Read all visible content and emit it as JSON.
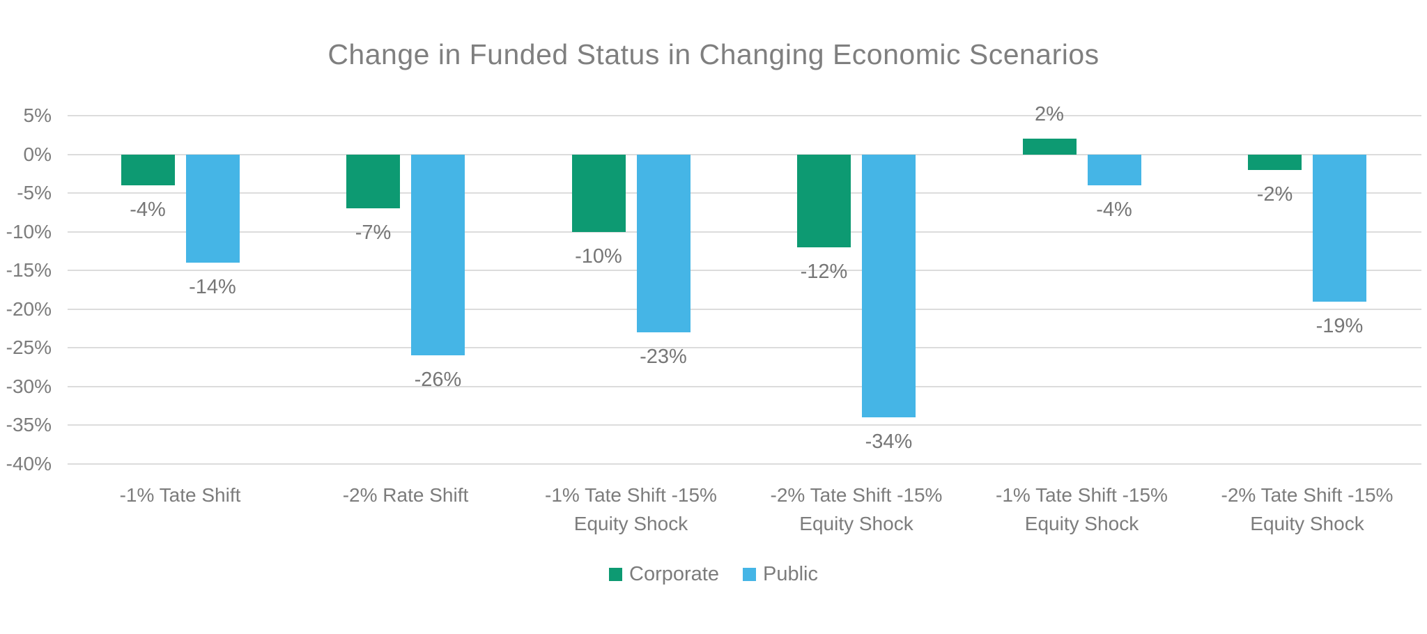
{
  "chart_data": {
    "type": "bar",
    "title": "Change in Funded Status in Changing Economic Scenarios",
    "categories": [
      "-1% Tate Shift",
      "-2% Rate Shift",
      "-1% Tate Shift -15%\nEquity Shock",
      "-2% Tate Shift -15%\nEquity Shock",
      "-1% Tate Shift -15%\nEquity Shock",
      "-2% Tate Shift -15%\nEquity Shock"
    ],
    "series": [
      {
        "name": "Corporate",
        "color": "#0d9a72",
        "values": [
          -4,
          -7,
          -10,
          -12,
          2,
          -2
        ],
        "labels": [
          "-4%",
          "-7%",
          "-10%",
          "-12%",
          "2%",
          "-2%"
        ]
      },
      {
        "name": "Public",
        "color": "#45b5e6",
        "values": [
          -14,
          -26,
          -23,
          -34,
          -4,
          -19
        ],
        "labels": [
          "-14%",
          "-26%",
          "-23%",
          "-34%",
          "-4%",
          "-19%"
        ]
      }
    ],
    "y_axis": {
      "min": -40,
      "max": 5,
      "step": 5,
      "ticks": [
        "5%",
        "0%",
        "-5%",
        "-10%",
        "-15%",
        "-20%",
        "-25%",
        "-30%",
        "-35%",
        "-40%"
      ]
    },
    "grid": true,
    "legend_position": "bottom",
    "colors": {
      "title_text": "#7f7f7f",
      "axis_text": "#7c7c7c",
      "data_label_text": "#767676",
      "gridline": "#dcdcdc",
      "background": "#ffffff"
    }
  }
}
